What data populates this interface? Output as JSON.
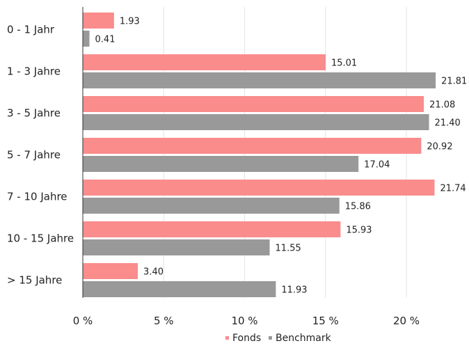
{
  "chart_data": {
    "type": "bar",
    "orientation": "horizontal",
    "categories": [
      "0 - 1 Jahr",
      "1 - 3 Jahre",
      "3 - 5 Jahre",
      "5 - 7 Jahre",
      "7 - 10 Jahre",
      "10 - 15 Jahre",
      "> 15 Jahre"
    ],
    "series": [
      {
        "name": "Fonds",
        "color": "#fa8c8c",
        "values": [
          1.93,
          15.01,
          21.08,
          20.92,
          21.74,
          15.93,
          3.4
        ],
        "labels": [
          "1.93",
          "15.01",
          "21.08",
          "20.92",
          "21.74",
          "15.93",
          "3.40"
        ]
      },
      {
        "name": "Benchmark",
        "color": "#999999",
        "values": [
          0.41,
          21.81,
          21.4,
          17.04,
          15.86,
          11.55,
          11.93
        ],
        "labels": [
          "0.41",
          "21.81",
          "21.40",
          "17.04",
          "15.86",
          "11.55",
          "11.93"
        ]
      }
    ],
    "xlim": [
      0,
      22.5
    ],
    "xticks": [
      0,
      5,
      10,
      15,
      20
    ],
    "xtick_labels": [
      "0 %",
      "5 %",
      "10 %",
      "15 %",
      "20 %"
    ],
    "grid": true,
    "legend_position": "bottom-center",
    "title": "",
    "xlabel": "",
    "ylabel": ""
  }
}
